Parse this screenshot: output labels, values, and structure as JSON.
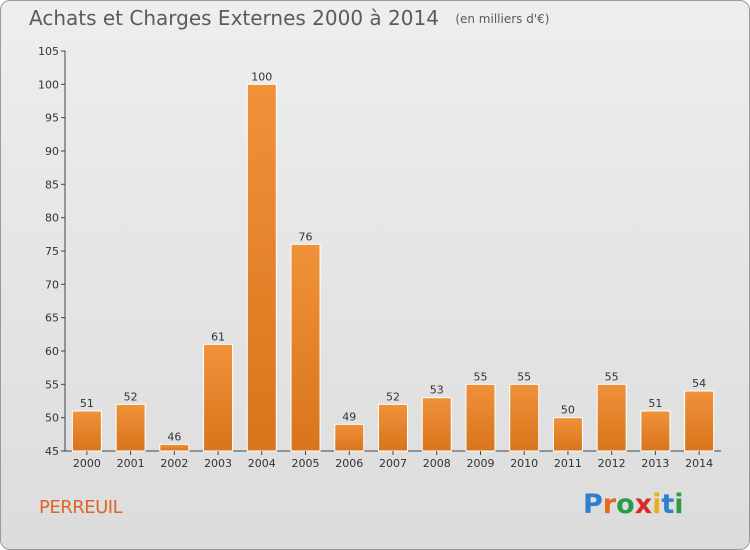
{
  "title": "Achats et Charges Externes 2000 à 2014",
  "unit_note": "(en milliers d'€)",
  "town": "PERREUIL",
  "brand": {
    "name": "Proxiti",
    "letters": [
      "P",
      "r",
      "o",
      "x",
      "i",
      "t",
      "i"
    ],
    "colors": [
      "#2f7fd0",
      "#e36a1c",
      "#2a9c45",
      "#d92a2a",
      "#e6b21c",
      "#2f7fd0",
      "#2a9c45"
    ]
  },
  "colors": {
    "bar": "#f0923a",
    "bar_dark": "#d8741c",
    "town": "#e0642a"
  },
  "chart_data": {
    "type": "bar",
    "categories": [
      "2000",
      "2001",
      "2002",
      "2003",
      "2004",
      "2005",
      "2006",
      "2007",
      "2008",
      "2009",
      "2010",
      "2011",
      "2012",
      "2013",
      "2014"
    ],
    "values": [
      51,
      52,
      46,
      61,
      100,
      76,
      49,
      52,
      53,
      55,
      55,
      50,
      55,
      51,
      54
    ],
    "ylim": [
      45,
      105
    ],
    "yticks": [
      45,
      50,
      55,
      60,
      65,
      70,
      75,
      80,
      85,
      90,
      95,
      100,
      105
    ],
    "grid": false,
    "xlabel": "",
    "ylabel": ""
  }
}
